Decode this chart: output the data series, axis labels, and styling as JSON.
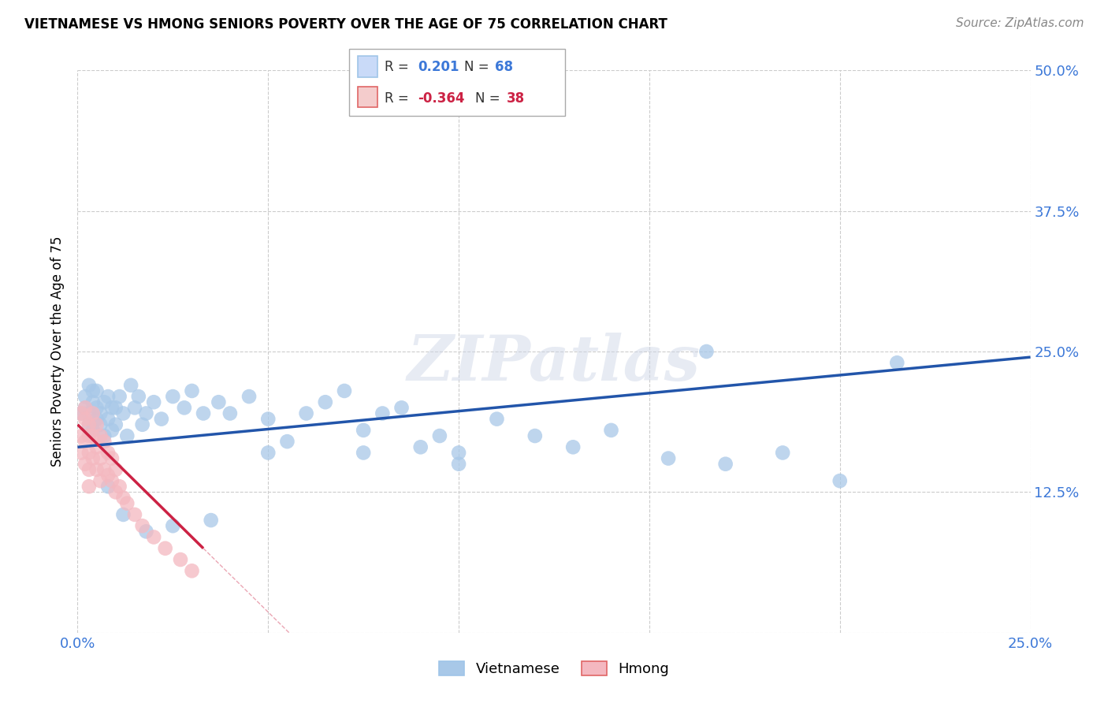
{
  "title": "VIETNAMESE VS HMONG SENIORS POVERTY OVER THE AGE OF 75 CORRELATION CHART",
  "source": "Source: ZipAtlas.com",
  "ylabel": "Seniors Poverty Over the Age of 75",
  "xlim": [
    0.0,
    0.25
  ],
  "ylim": [
    0.0,
    0.5
  ],
  "xticks": [
    0.0,
    0.05,
    0.1,
    0.15,
    0.2,
    0.25
  ],
  "yticks": [
    0.0,
    0.125,
    0.25,
    0.375,
    0.5
  ],
  "xticklabels": [
    "0.0%",
    "",
    "",
    "",
    "",
    "25.0%"
  ],
  "yticklabels": [
    "",
    "12.5%",
    "25.0%",
    "37.5%",
    "50.0%"
  ],
  "viet_R": 0.201,
  "viet_N": 68,
  "hmong_R": -0.364,
  "hmong_N": 38,
  "viet_color": "#a8c8e8",
  "hmong_color": "#f4b8c0",
  "viet_line_color": "#2255aa",
  "hmong_line_color": "#cc2244",
  "legend_box_color_viet": "#c9daf8",
  "legend_box_color_hmong": "#f4cccc",
  "watermark_text": "ZIPatlas",
  "background_color": "#ffffff",
  "grid_color": "#cccccc",
  "viet_x": [
    0.001,
    0.002,
    0.002,
    0.003,
    0.003,
    0.003,
    0.004,
    0.004,
    0.004,
    0.005,
    0.005,
    0.005,
    0.006,
    0.006,
    0.007,
    0.007,
    0.008,
    0.008,
    0.009,
    0.009,
    0.01,
    0.01,
    0.011,
    0.012,
    0.013,
    0.014,
    0.015,
    0.016,
    0.017,
    0.018,
    0.02,
    0.022,
    0.025,
    0.028,
    0.03,
    0.033,
    0.037,
    0.04,
    0.045,
    0.05,
    0.055,
    0.06,
    0.065,
    0.07,
    0.075,
    0.08,
    0.085,
    0.09,
    0.095,
    0.1,
    0.11,
    0.12,
    0.13,
    0.14,
    0.155,
    0.17,
    0.185,
    0.2,
    0.215,
    0.008,
    0.012,
    0.018,
    0.025,
    0.035,
    0.05,
    0.075,
    0.1,
    0.165
  ],
  "viet_y": [
    0.195,
    0.2,
    0.21,
    0.185,
    0.195,
    0.22,
    0.18,
    0.205,
    0.215,
    0.19,
    0.2,
    0.215,
    0.185,
    0.195,
    0.175,
    0.205,
    0.19,
    0.21,
    0.18,
    0.2,
    0.185,
    0.2,
    0.21,
    0.195,
    0.175,
    0.22,
    0.2,
    0.21,
    0.185,
    0.195,
    0.205,
    0.19,
    0.21,
    0.2,
    0.215,
    0.195,
    0.205,
    0.195,
    0.21,
    0.19,
    0.17,
    0.195,
    0.205,
    0.215,
    0.18,
    0.195,
    0.2,
    0.165,
    0.175,
    0.16,
    0.19,
    0.175,
    0.165,
    0.18,
    0.155,
    0.15,
    0.16,
    0.135,
    0.24,
    0.13,
    0.105,
    0.09,
    0.095,
    0.1,
    0.16,
    0.16,
    0.15,
    0.25
  ],
  "hmong_x": [
    0.001,
    0.001,
    0.001,
    0.002,
    0.002,
    0.002,
    0.002,
    0.003,
    0.003,
    0.003,
    0.003,
    0.003,
    0.004,
    0.004,
    0.004,
    0.005,
    0.005,
    0.005,
    0.006,
    0.006,
    0.006,
    0.007,
    0.007,
    0.008,
    0.008,
    0.009,
    0.009,
    0.01,
    0.01,
    0.011,
    0.012,
    0.013,
    0.015,
    0.017,
    0.02,
    0.023,
    0.027,
    0.03
  ],
  "hmong_y": [
    0.195,
    0.175,
    0.16,
    0.2,
    0.19,
    0.17,
    0.15,
    0.185,
    0.175,
    0.16,
    0.145,
    0.13,
    0.195,
    0.175,
    0.155,
    0.185,
    0.165,
    0.145,
    0.175,
    0.155,
    0.135,
    0.17,
    0.145,
    0.16,
    0.14,
    0.155,
    0.135,
    0.145,
    0.125,
    0.13,
    0.12,
    0.115,
    0.105,
    0.095,
    0.085,
    0.075,
    0.065,
    0.055
  ],
  "viet_line_x0": 0.0,
  "viet_line_x1": 0.25,
  "viet_line_y0": 0.165,
  "viet_line_y1": 0.245,
  "hmong_line_x0": 0.0,
  "hmong_line_x1": 0.033,
  "hmong_line_y0": 0.185,
  "hmong_line_y1": 0.075
}
